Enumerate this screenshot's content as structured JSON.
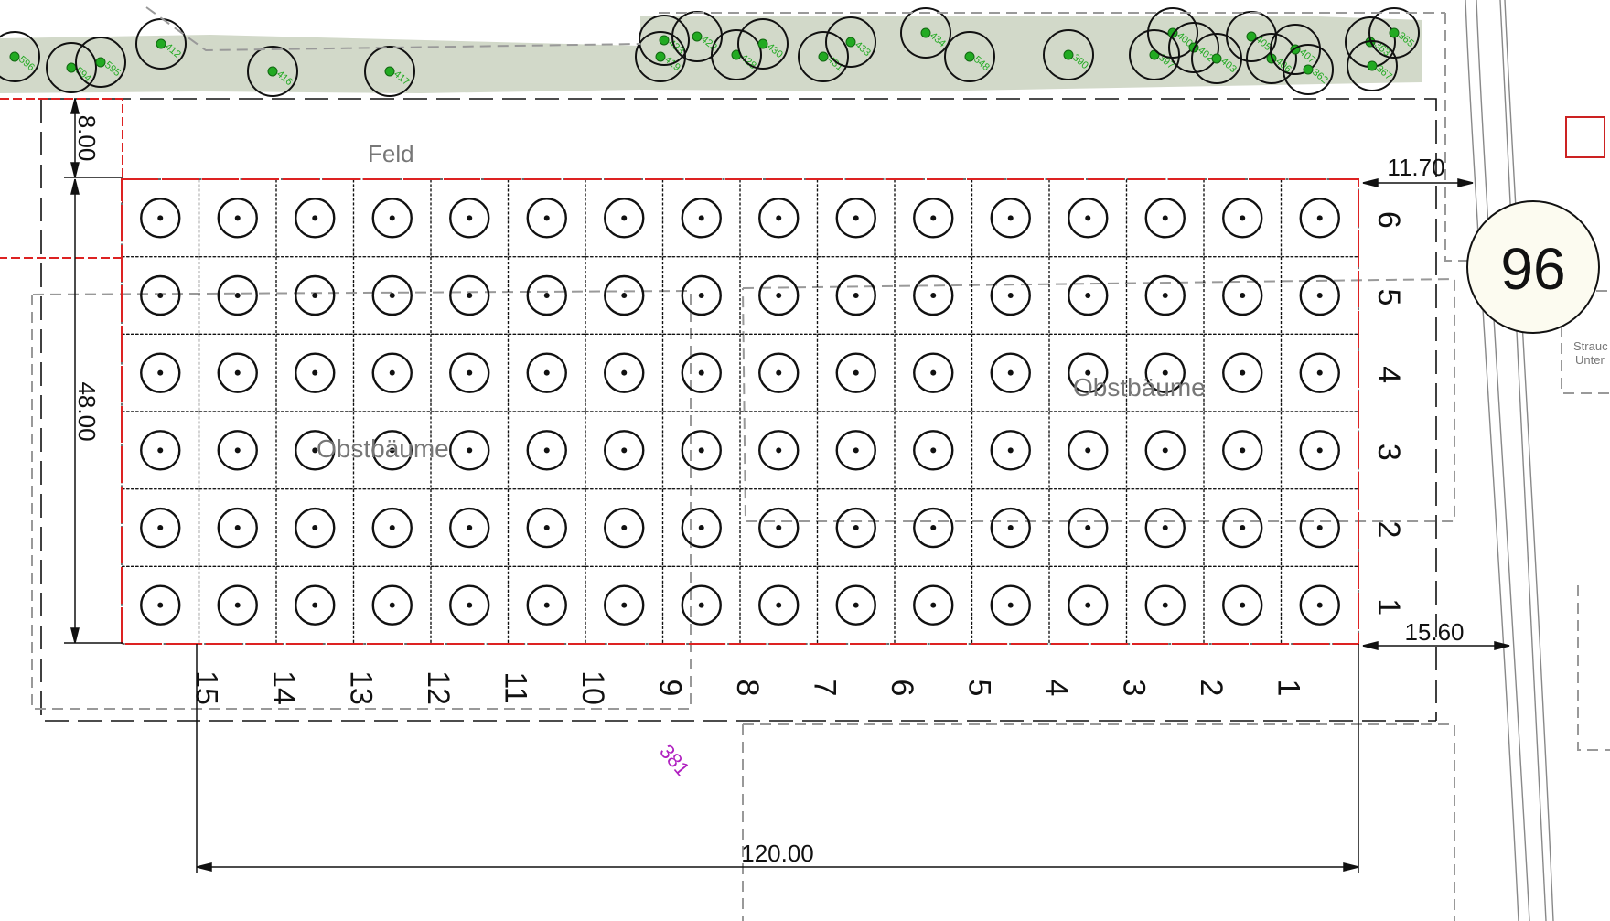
{
  "plan": {
    "columns": [
      "1",
      "2",
      "3",
      "4",
      "5",
      "6",
      "7",
      "8",
      "9",
      "10",
      "11",
      "12",
      "13",
      "14",
      "15",
      "16"
    ],
    "column_labels": [
      "1",
      "2",
      "3",
      "4",
      "5",
      "6",
      "7",
      "8",
      "9",
      "10",
      "11",
      "12",
      "13",
      "14",
      "15"
    ],
    "row_labels": [
      "1",
      "2",
      "3",
      "4",
      "5",
      "6"
    ],
    "area_labels": {
      "field": "Feld",
      "orchard_left": "Obstbäume",
      "orchard_right": "Obstbäume"
    },
    "dimensions": {
      "top_margin": "8.00",
      "height": "48.00",
      "right_top": "11.70",
      "right_bottom": "15.60",
      "width": "120.00"
    },
    "parcel_number": "381",
    "house_number": "96",
    "side_note_line1": "Strauc",
    "side_note_line2": "Unter",
    "colors": {
      "boundary": "#dd2222",
      "hedge": "#d2d9c9",
      "tree_marker": "#22aa22",
      "parcel_text": "#b020c0",
      "label_grey": "#777777"
    },
    "hedge_trees": [
      {
        "id": "596"
      },
      {
        "id": "594"
      },
      {
        "id": "595"
      },
      {
        "id": "412"
      },
      {
        "id": "416"
      },
      {
        "id": "417"
      },
      {
        "id": "419"
      },
      {
        "id": "423"
      },
      {
        "id": "422"
      },
      {
        "id": "428"
      },
      {
        "id": "430"
      },
      {
        "id": "431"
      },
      {
        "id": "433"
      },
      {
        "id": "434"
      },
      {
        "id": "548"
      },
      {
        "id": "390"
      },
      {
        "id": "397"
      },
      {
        "id": "400"
      },
      {
        "id": "402"
      },
      {
        "id": "403"
      },
      {
        "id": "405"
      },
      {
        "id": "406"
      },
      {
        "id": "407"
      },
      {
        "id": "362"
      },
      {
        "id": "363"
      },
      {
        "id": "365"
      },
      {
        "id": "367"
      }
    ]
  }
}
